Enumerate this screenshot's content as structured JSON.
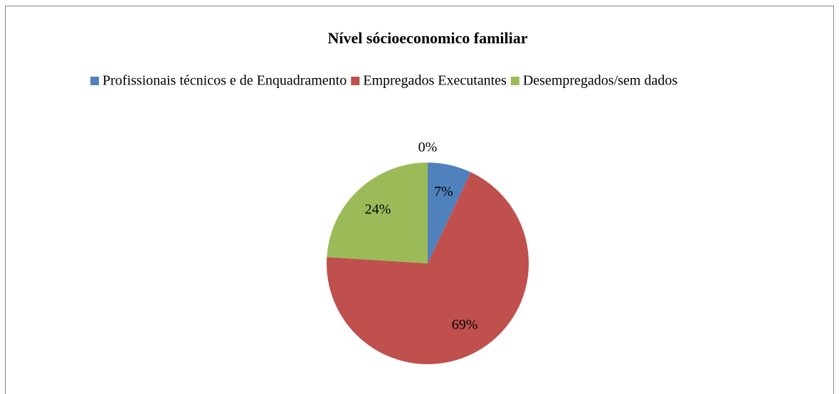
{
  "chart_data": {
    "type": "pie",
    "title": "Nível sócioeconomico familiar",
    "categories": [
      "Profissionais técnicos e de Enquadramento",
      "Empregados Executantes",
      "Desempregados/sem dados",
      null
    ],
    "values": [
      7,
      69,
      24,
      0
    ],
    "value_labels": [
      "7%",
      "69%",
      "24%",
      "0%"
    ],
    "colors": [
      "#4f81bd",
      "#c0504d",
      "#9bbb59",
      "#8064a2"
    ],
    "legend": "top"
  }
}
